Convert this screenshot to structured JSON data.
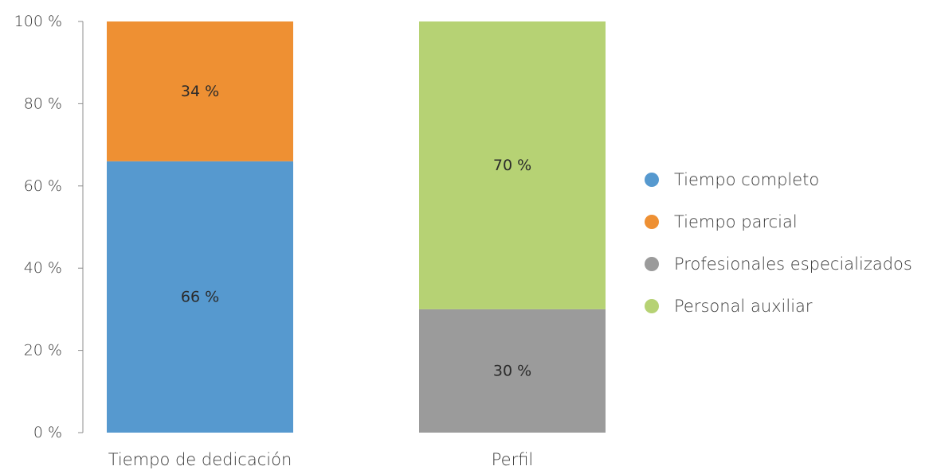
{
  "chart_data": {
    "type": "bar",
    "stacked": true,
    "categories": [
      "Tiempo de dedicación",
      "Perfil"
    ],
    "ylim": [
      0,
      100
    ],
    "yticks": [
      "0 %",
      "20 %",
      "40 %",
      "60 %",
      "80 %",
      "100 %"
    ],
    "ytick_values": [
      0,
      20,
      40,
      60,
      80,
      100
    ],
    "grid": false,
    "legend_position": "right",
    "series": [
      {
        "name": "Tiempo completo",
        "color": "#5699cf",
        "values": [
          66,
          0
        ],
        "labels": [
          "66 %",
          ""
        ]
      },
      {
        "name": "Tiempo parcial",
        "color": "#ee9033",
        "values": [
          34,
          0
        ],
        "labels": [
          "34 %",
          ""
        ]
      },
      {
        "name": "Profesionales especializados",
        "color": "#9b9b9b",
        "values": [
          0,
          30
        ],
        "labels": [
          "",
          "30 %"
        ]
      },
      {
        "name": "Personal auxiliar",
        "color": "#b6d274",
        "values": [
          0,
          70
        ],
        "labels": [
          "",
          "70 %"
        ]
      }
    ]
  }
}
